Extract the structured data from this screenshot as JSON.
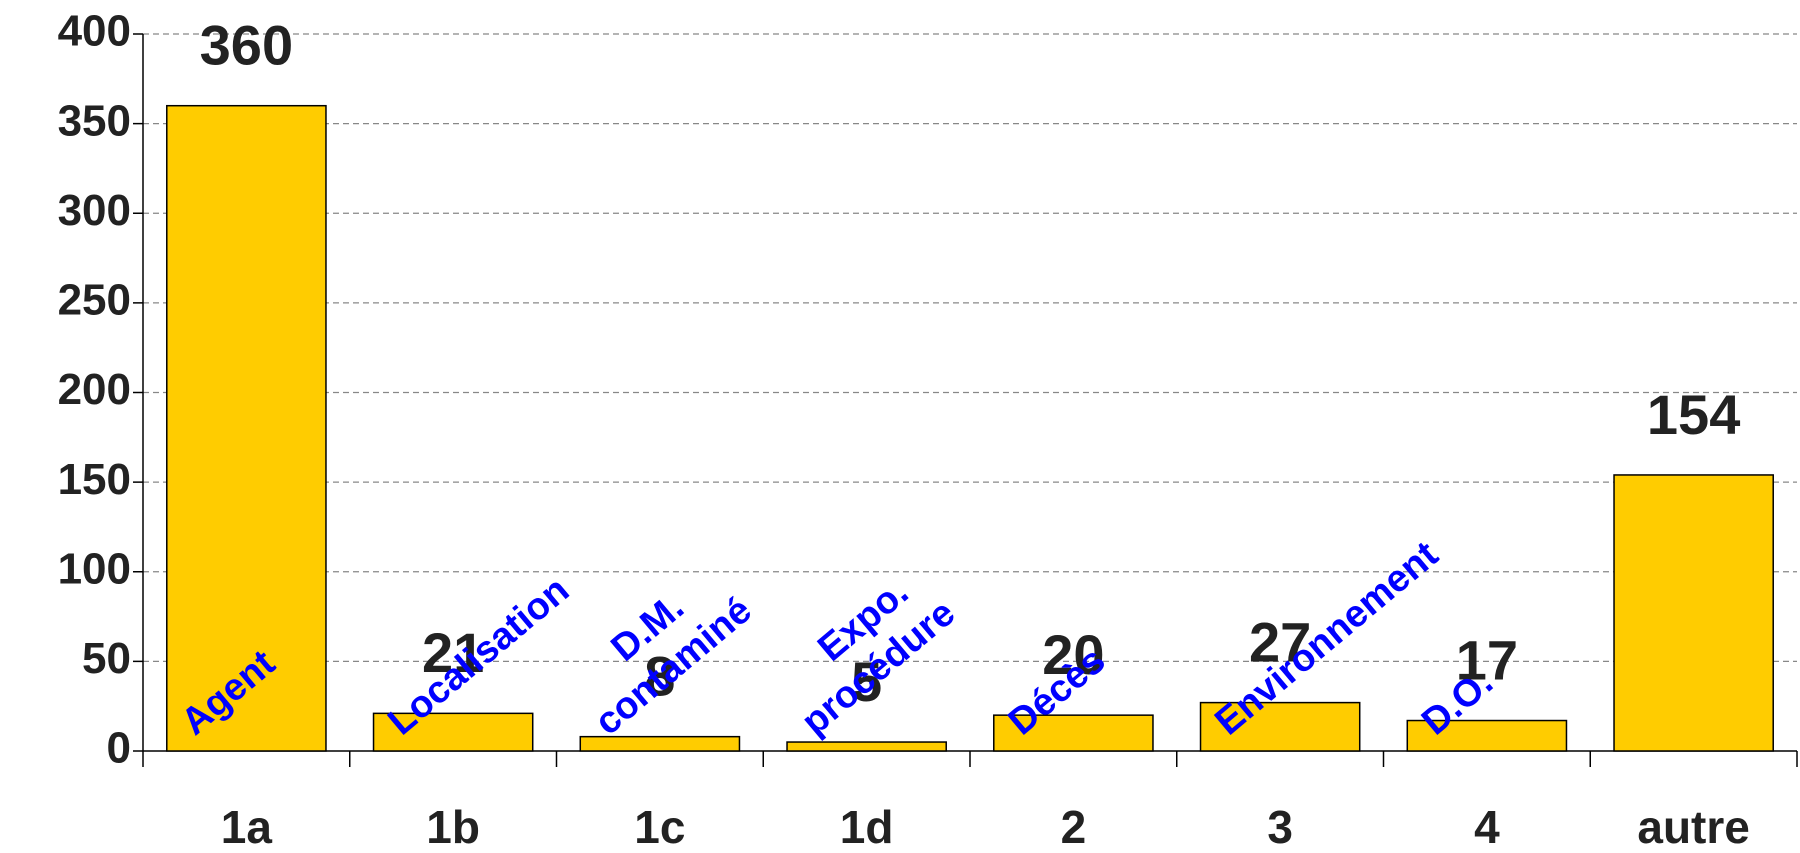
{
  "chart_data": {
    "type": "bar",
    "categories": [
      "1a",
      "1b",
      "1c",
      "1d",
      "2",
      "3",
      "4",
      "autre"
    ],
    "values": [
      360,
      21,
      8,
      5,
      20,
      27,
      17,
      154
    ],
    "color": "#ffcc00",
    "annotations": [
      [
        "Agent"
      ],
      [
        "Localisation"
      ],
      [
        "D.M.",
        "contaminé"
      ],
      [
        "Expo.",
        "procédure"
      ],
      [
        "Décès"
      ],
      [
        "Environnement"
      ],
      [
        "D.O."
      ],
      []
    ],
    "annotation_color": "#0000ff",
    "ylim": [
      0,
      400
    ],
    "yticks": [
      0,
      50,
      100,
      150,
      200,
      250,
      300,
      350,
      400
    ],
    "grid": true
  }
}
